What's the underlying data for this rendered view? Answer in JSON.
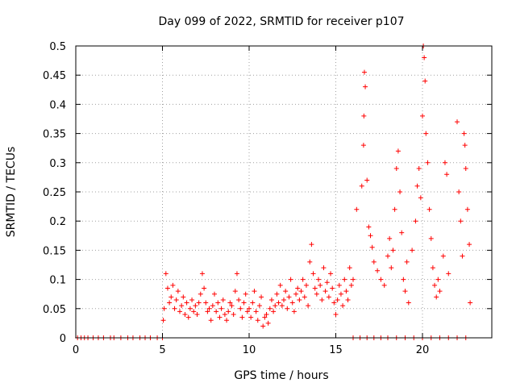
{
  "chart_data": {
    "type": "scatter",
    "title": "Day 099 of 2022, SRMTID for receiver p107",
    "xlabel": "GPS time / hours",
    "ylabel": "SRMTID / TECUs",
    "xlim": [
      0,
      24
    ],
    "ylim": [
      0,
      0.5
    ],
    "x_ticks": [
      0,
      5,
      10,
      15,
      20
    ],
    "y_ticks": [
      0,
      0.05,
      0.1,
      0.15,
      0.2,
      0.25,
      0.3,
      0.35,
      0.4,
      0.45,
      0.5
    ],
    "x_tick_labels": [
      "0",
      "5",
      "10",
      "15",
      "20"
    ],
    "y_tick_labels": [
      "0",
      "0.05",
      "0.1",
      "0.15",
      "0.2",
      "0.25",
      "0.3",
      "0.35",
      "0.4",
      "0.45",
      "0.5"
    ],
    "grid": true,
    "marker": "+",
    "color": "#ff0000",
    "series": [
      {
        "name": "SRMTID",
        "points": [
          [
            0.1,
            0
          ],
          [
            0.3,
            0
          ],
          [
            0.5,
            0
          ],
          [
            0.7,
            0
          ],
          [
            1.0,
            0
          ],
          [
            1.3,
            0
          ],
          [
            1.6,
            0
          ],
          [
            2.0,
            0
          ],
          [
            2.2,
            0
          ],
          [
            2.6,
            0
          ],
          [
            3.0,
            0
          ],
          [
            3.3,
            0
          ],
          [
            3.7,
            0
          ],
          [
            4.0,
            0
          ],
          [
            4.3,
            0
          ],
          [
            4.7,
            0
          ],
          [
            5.0,
            0
          ],
          [
            5.05,
            0.03
          ],
          [
            5.1,
            0.05
          ],
          [
            5.2,
            0.11
          ],
          [
            5.3,
            0.085
          ],
          [
            5.4,
            0.06
          ],
          [
            5.5,
            0.07
          ],
          [
            5.6,
            0.09
          ],
          [
            5.7,
            0.05
          ],
          [
            5.8,
            0.065
          ],
          [
            5.9,
            0.08
          ],
          [
            6.0,
            0.045
          ],
          [
            6.1,
            0.055
          ],
          [
            6.2,
            0.07
          ],
          [
            6.3,
            0.04
          ],
          [
            6.4,
            0.06
          ],
          [
            6.5,
            0.035
          ],
          [
            6.6,
            0.05
          ],
          [
            6.7,
            0.065
          ],
          [
            6.8,
            0.045
          ],
          [
            6.9,
            0.055
          ],
          [
            7.0,
            0.04
          ],
          [
            7.1,
            0.06
          ],
          [
            7.2,
            0.075
          ],
          [
            7.3,
            0.11
          ],
          [
            7.4,
            0.085
          ],
          [
            7.5,
            0.06
          ],
          [
            7.6,
            0.045
          ],
          [
            7.7,
            0.05
          ],
          [
            7.8,
            0.03
          ],
          [
            7.9,
            0.055
          ],
          [
            8.0,
            0.075
          ],
          [
            8.1,
            0.045
          ],
          [
            8.2,
            0.06
          ],
          [
            8.3,
            0.035
          ],
          [
            8.4,
            0.05
          ],
          [
            8.5,
            0.065
          ],
          [
            8.6,
            0.04
          ],
          [
            8.7,
            0.03
          ],
          [
            8.8,
            0.045
          ],
          [
            8.9,
            0.06
          ],
          [
            9.0,
            0.055
          ],
          [
            9.1,
            0.04
          ],
          [
            9.2,
            0.08
          ],
          [
            9.3,
            0.11
          ],
          [
            9.4,
            0.065
          ],
          [
            9.5,
            0.05
          ],
          [
            9.6,
            0.035
          ],
          [
            9.7,
            0.06
          ],
          [
            9.8,
            0.075
          ],
          [
            9.9,
            0.045
          ],
          [
            10.0,
            0.05
          ],
          [
            10.1,
            0.035
          ],
          [
            10.2,
            0.06
          ],
          [
            10.3,
            0.08
          ],
          [
            10.4,
            0.045
          ],
          [
            10.5,
            0.03
          ],
          [
            10.6,
            0.055
          ],
          [
            10.7,
            0.07
          ],
          [
            10.8,
            0.02
          ],
          [
            10.9,
            0.035
          ],
          [
            11.0,
            0.04
          ],
          [
            11.1,
            0.025
          ],
          [
            11.2,
            0.05
          ],
          [
            11.3,
            0.065
          ],
          [
            11.4,
            0.045
          ],
          [
            11.5,
            0.055
          ],
          [
            11.6,
            0.075
          ],
          [
            11.7,
            0.06
          ],
          [
            11.8,
            0.09
          ],
          [
            11.9,
            0.055
          ],
          [
            12.0,
            0.065
          ],
          [
            12.1,
            0.08
          ],
          [
            12.2,
            0.05
          ],
          [
            12.3,
            0.07
          ],
          [
            12.4,
            0.1
          ],
          [
            12.5,
            0.06
          ],
          [
            12.6,
            0.045
          ],
          [
            12.7,
            0.075
          ],
          [
            12.8,
            0.085
          ],
          [
            12.9,
            0.065
          ],
          [
            13.0,
            0.08
          ],
          [
            13.1,
            0.1
          ],
          [
            13.2,
            0.07
          ],
          [
            13.3,
            0.09
          ],
          [
            13.4,
            0.055
          ],
          [
            13.5,
            0.13
          ],
          [
            13.6,
            0.16
          ],
          [
            13.7,
            0.11
          ],
          [
            13.8,
            0.085
          ],
          [
            13.9,
            0.075
          ],
          [
            14.0,
            0.1
          ],
          [
            14.1,
            0.09
          ],
          [
            14.2,
            0.065
          ],
          [
            14.3,
            0.12
          ],
          [
            14.4,
            0.08
          ],
          [
            14.5,
            0.095
          ],
          [
            14.6,
            0.07
          ],
          [
            14.7,
            0.11
          ],
          [
            14.8,
            0.085
          ],
          [
            14.9,
            0.06
          ],
          [
            15.0,
            0.04
          ],
          [
            15.1,
            0.065
          ],
          [
            15.2,
            0.09
          ],
          [
            15.3,
            0.075
          ],
          [
            15.4,
            0.055
          ],
          [
            15.5,
            0.1
          ],
          [
            15.6,
            0.08
          ],
          [
            15.7,
            0.065
          ],
          [
            15.8,
            0.12
          ],
          [
            15.9,
            0.09
          ],
          [
            16.0,
            0.1
          ],
          [
            16.2,
            0.22
          ],
          [
            16.5,
            0.26
          ],
          [
            16.6,
            0.33
          ],
          [
            16.62,
            0.38
          ],
          [
            16.65,
            0.455
          ],
          [
            16.7,
            0.43
          ],
          [
            16.8,
            0.27
          ],
          [
            16.9,
            0.19
          ],
          [
            17.0,
            0.175
          ],
          [
            17.1,
            0.155
          ],
          [
            17.2,
            0.13
          ],
          [
            17.4,
            0.115
          ],
          [
            17.6,
            0.1
          ],
          [
            17.8,
            0.09
          ],
          [
            18.0,
            0.14
          ],
          [
            18.1,
            0.17
          ],
          [
            18.2,
            0.12
          ],
          [
            18.3,
            0.15
          ],
          [
            18.4,
            0.22
          ],
          [
            18.5,
            0.29
          ],
          [
            18.6,
            0.32
          ],
          [
            18.7,
            0.25
          ],
          [
            18.8,
            0.18
          ],
          [
            18.9,
            0.1
          ],
          [
            19.0,
            0.08
          ],
          [
            19.1,
            0.13
          ],
          [
            19.2,
            0.06
          ],
          [
            19.4,
            0.15
          ],
          [
            19.6,
            0.2
          ],
          [
            19.7,
            0.26
          ],
          [
            19.8,
            0.29
          ],
          [
            19.9,
            0.24
          ],
          [
            20.0,
            0.38
          ],
          [
            20.05,
            0.5
          ],
          [
            20.1,
            0.48
          ],
          [
            20.15,
            0.44
          ],
          [
            20.2,
            0.35
          ],
          [
            20.3,
            0.3
          ],
          [
            20.4,
            0.22
          ],
          [
            20.5,
            0.17
          ],
          [
            20.6,
            0.12
          ],
          [
            20.7,
            0.09
          ],
          [
            20.8,
            0.07
          ],
          [
            20.9,
            0.1
          ],
          [
            21.0,
            0.08
          ],
          [
            21.2,
            0.14
          ],
          [
            21.3,
            0.3
          ],
          [
            21.4,
            0.28
          ],
          [
            21.5,
            0.11
          ],
          [
            22.0,
            0.37
          ],
          [
            22.1,
            0.25
          ],
          [
            22.2,
            0.2
          ],
          [
            22.3,
            0.14
          ],
          [
            22.4,
            0.35
          ],
          [
            22.45,
            0.33
          ],
          [
            22.5,
            0.29
          ],
          [
            22.6,
            0.22
          ],
          [
            22.7,
            0.16
          ],
          [
            22.75,
            0.06
          ],
          [
            16.0,
            0
          ],
          [
            16.4,
            0
          ],
          [
            16.8,
            0
          ],
          [
            17.2,
            0
          ],
          [
            17.6,
            0
          ],
          [
            18.0,
            0
          ],
          [
            18.5,
            0
          ],
          [
            19.0,
            0
          ],
          [
            19.5,
            0
          ],
          [
            20.0,
            0
          ],
          [
            20.5,
            0
          ],
          [
            21.0,
            0
          ],
          [
            21.5,
            0
          ],
          [
            22.0,
            0
          ],
          [
            22.5,
            0
          ]
        ]
      }
    ]
  }
}
